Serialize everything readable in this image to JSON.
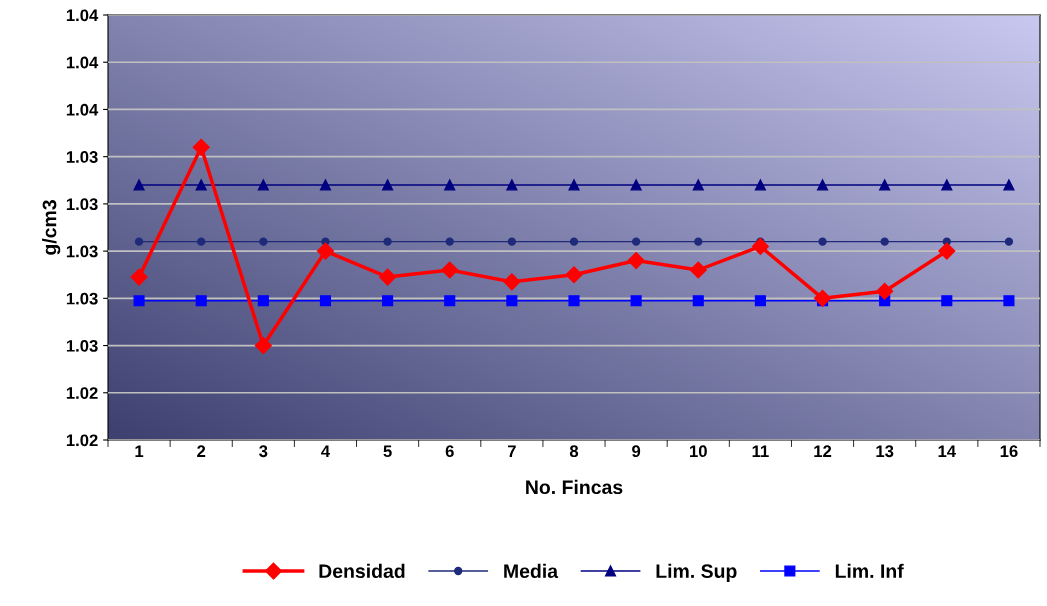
{
  "chart_data": {
    "type": "line",
    "xlabel": "No. Fincas",
    "ylabel": "g/cm3",
    "categories": [
      "1",
      "2",
      "3",
      "4",
      "5",
      "6",
      "7",
      "8",
      "9",
      "10",
      "11",
      "12",
      "13",
      "14",
      "16"
    ],
    "series": [
      {
        "name": "Densidad",
        "color": "#ff0000",
        "marker": "diamond",
        "values": [
          1.0289,
          1.0344,
          1.026,
          1.03,
          1.0289,
          1.0292,
          1.0287,
          1.029,
          1.0296,
          1.0292,
          1.0302,
          1.028,
          1.0283,
          1.03,
          null
        ]
      },
      {
        "name": "Media",
        "color": "#1f2a7a",
        "marker": "circle",
        "values": [
          1.0304,
          1.0304,
          1.0304,
          1.0304,
          1.0304,
          1.0304,
          1.0304,
          1.0304,
          1.0304,
          1.0304,
          1.0304,
          1.0304,
          1.0304,
          1.0304,
          1.0304
        ]
      },
      {
        "name": "Lim. Sup",
        "color": "#000080",
        "marker": "triangle",
        "values": [
          1.0328,
          1.0328,
          1.0328,
          1.0328,
          1.0328,
          1.0328,
          1.0328,
          1.0328,
          1.0328,
          1.0328,
          1.0328,
          1.0328,
          1.0328,
          1.0328,
          1.0328
        ]
      },
      {
        "name": "Lim. Inf",
        "color": "#0000ff",
        "marker": "square",
        "values": [
          1.0279,
          1.0279,
          1.0279,
          1.0279,
          1.0279,
          1.0279,
          1.0279,
          1.0279,
          1.0279,
          1.0279,
          1.0279,
          1.0279,
          1.0279,
          1.0279,
          1.0279
        ]
      }
    ],
    "ylim": [
      1.022,
      1.04
    ],
    "yticks": [
      {
        "value": 1.022,
        "label": "1.02"
      },
      {
        "value": 1.024,
        "label": "1.02"
      },
      {
        "value": 1.026,
        "label": "1.03"
      },
      {
        "value": 1.028,
        "label": "1.03"
      },
      {
        "value": 1.03,
        "label": "1.03"
      },
      {
        "value": 1.032,
        "label": "1.03"
      },
      {
        "value": 1.034,
        "label": "1.03"
      },
      {
        "value": 1.036,
        "label": "1.04"
      },
      {
        "value": 1.038,
        "label": "1.04"
      },
      {
        "value": 1.04,
        "label": "1.04"
      }
    ],
    "grid": "y",
    "legend": "bottom"
  }
}
